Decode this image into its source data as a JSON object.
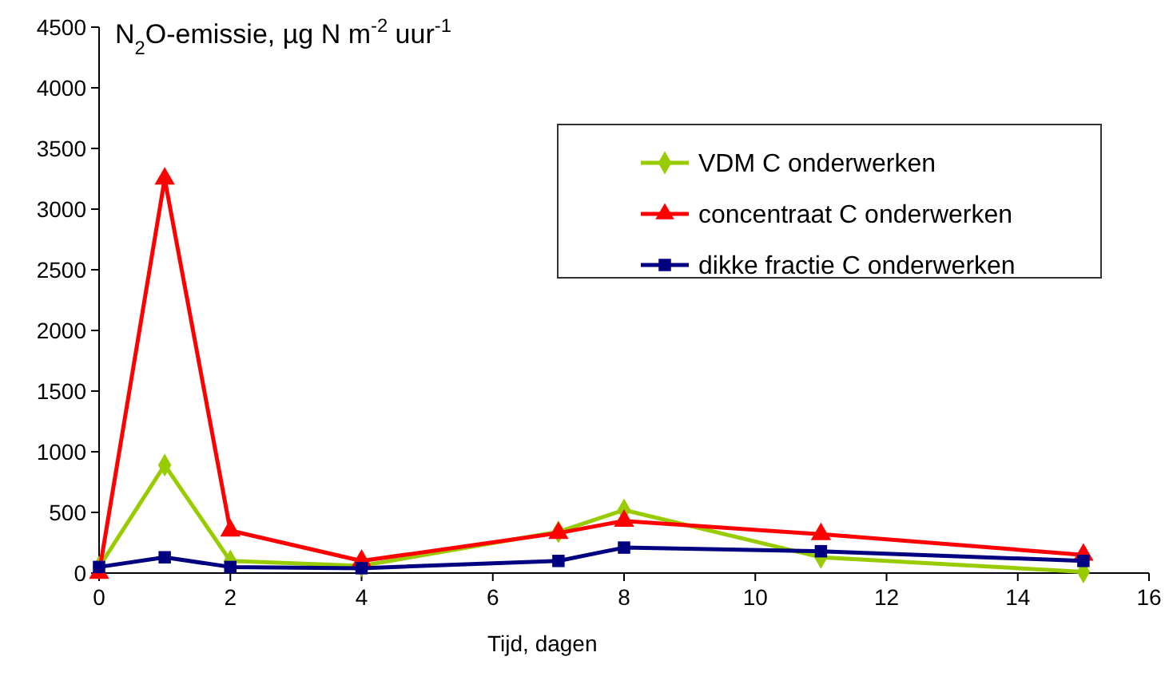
{
  "chart_data": {
    "type": "line",
    "ylabel": "N$_{2}$O-emissie, µg N m$^{-2}$ uur$^{-1}$",
    "xlabel": "Tijd, dagen",
    "x": [
      0,
      1,
      2,
      4,
      7,
      8,
      11,
      15
    ],
    "series": [
      {
        "name": "VDM C onderwerken",
        "color": "#99cc00",
        "marker": "diamond",
        "values": [
          50,
          890,
          100,
          60,
          340,
          520,
          130,
          10
        ]
      },
      {
        "name": "concentraat C onderwerken",
        "color": "#ff0000",
        "marker": "triangle",
        "values": [
          0,
          3250,
          350,
          100,
          330,
          430,
          320,
          150
        ]
      },
      {
        "name": "dikke fractie C onderwerken",
        "color": "#000080",
        "marker": "square",
        "values": [
          50,
          130,
          50,
          40,
          100,
          210,
          180,
          100
        ]
      }
    ],
    "xlim": [
      0,
      16
    ],
    "xticks": [
      0,
      2,
      4,
      6,
      8,
      10,
      12,
      14,
      16
    ],
    "ylim": [
      0,
      4500
    ],
    "yticks": [
      0,
      500,
      1000,
      1500,
      2000,
      2500,
      3000,
      3500,
      4000,
      4500
    ],
    "grid": false,
    "legend": "top right",
    "line_style": "solid"
  }
}
